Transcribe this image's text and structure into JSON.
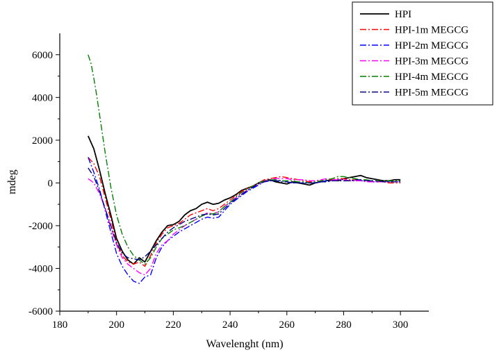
{
  "chart_data": {
    "type": "line",
    "xlabel": "Wavelenght (nm)",
    "ylabel": "mdeg",
    "xlim": [
      180,
      310
    ],
    "ylim": [
      -6000,
      7000
    ],
    "xticks": [
      180,
      200,
      220,
      240,
      260,
      280,
      300
    ],
    "yticks": [
      -6000,
      -4000,
      -2000,
      0,
      2000,
      4000,
      6000
    ],
    "legend_position": "top-right",
    "grid": false,
    "series": [
      {
        "name": "HPI",
        "color": "#000000",
        "dash": "solid",
        "x": [
          190,
          192,
          194,
          196,
          198,
          200,
          202,
          204,
          206,
          208,
          210,
          212,
          214,
          216,
          218,
          220,
          222,
          224,
          226,
          228,
          230,
          232,
          234,
          236,
          238,
          240,
          242,
          244,
          246,
          248,
          250,
          252,
          254,
          256,
          258,
          260,
          262,
          264,
          266,
          268,
          270,
          272,
          274,
          276,
          278,
          280,
          282,
          284,
          286,
          288,
          290,
          292,
          294,
          296,
          298,
          300
        ],
        "y": [
          2200,
          1600,
          600,
          -500,
          -1500,
          -2600,
          -3200,
          -3600,
          -3800,
          -3500,
          -3700,
          -3200,
          -2700,
          -2300,
          -2000,
          -1950,
          -1800,
          -1500,
          -1300,
          -1200,
          -1000,
          -900,
          -1000,
          -950,
          -800,
          -700,
          -550,
          -350,
          -250,
          -150,
          0,
          100,
          150,
          50,
          0,
          -50,
          50,
          0,
          -50,
          -100,
          0,
          50,
          100,
          150,
          100,
          200,
          250,
          300,
          350,
          250,
          200,
          150,
          100,
          100,
          150,
          150
        ]
      },
      {
        "name": "HPI-1m MEGCG",
        "color": "#ff0000",
        "dash": "dashdot",
        "x": [
          190,
          192,
          194,
          196,
          198,
          200,
          202,
          204,
          206,
          208,
          210,
          212,
          214,
          216,
          218,
          220,
          222,
          224,
          226,
          228,
          230,
          232,
          234,
          236,
          238,
          240,
          242,
          244,
          246,
          248,
          250,
          252,
          254,
          256,
          258,
          260,
          262,
          264,
          266,
          268,
          270,
          272,
          274,
          276,
          278,
          280,
          282,
          284,
          286,
          288,
          290,
          292,
          294,
          296,
          298,
          300
        ],
        "y": [
          1200,
          900,
          300,
          -700,
          -1700,
          -2800,
          -3400,
          -3700,
          -3800,
          -3700,
          -3900,
          -3400,
          -2800,
          -2400,
          -2100,
          -2000,
          -1900,
          -1700,
          -1500,
          -1400,
          -1300,
          -1200,
          -1300,
          -1200,
          -1000,
          -800,
          -600,
          -400,
          -250,
          -150,
          0,
          150,
          200,
          250,
          300,
          250,
          200,
          150,
          100,
          50,
          50,
          100,
          150,
          150,
          200,
          200,
          150,
          150,
          100,
          100,
          50,
          50,
          50,
          0,
          0,
          0
        ]
      },
      {
        "name": "HPI-2m MEGCG",
        "color": "#0000ff",
        "dash": "dashdot",
        "x": [
          190,
          192,
          194,
          196,
          198,
          200,
          202,
          204,
          206,
          208,
          210,
          212,
          214,
          216,
          218,
          220,
          222,
          224,
          226,
          228,
          230,
          232,
          234,
          236,
          238,
          240,
          242,
          244,
          246,
          248,
          250,
          252,
          254,
          256,
          258,
          260,
          262,
          264,
          266,
          268,
          270,
          272,
          274,
          276,
          278,
          280,
          282,
          284,
          286,
          288,
          290,
          292,
          294,
          296,
          298,
          300
        ],
        "y": [
          1200,
          500,
          -300,
          -1300,
          -2300,
          -3300,
          -3900,
          -4300,
          -4600,
          -4700,
          -4400,
          -4300,
          -3500,
          -3000,
          -2700,
          -2500,
          -2300,
          -2150,
          -2000,
          -1850,
          -1700,
          -1600,
          -1650,
          -1600,
          -1300,
          -1000,
          -800,
          -600,
          -400,
          -250,
          -100,
          50,
          100,
          100,
          100,
          50,
          0,
          0,
          0,
          0,
          0,
          50,
          100,
          100,
          150,
          150,
          100,
          100,
          100,
          100,
          50,
          50,
          50,
          50,
          50,
          50
        ]
      },
      {
        "name": "HPI-3m MEGCG",
        "color": "#ff00ff",
        "dash": "dashdot",
        "x": [
          190,
          192,
          194,
          196,
          198,
          200,
          202,
          204,
          206,
          208,
          210,
          212,
          214,
          216,
          218,
          220,
          222,
          224,
          226,
          228,
          230,
          232,
          234,
          236,
          238,
          240,
          242,
          244,
          246,
          248,
          250,
          252,
          254,
          256,
          258,
          260,
          262,
          264,
          266,
          268,
          270,
          272,
          274,
          276,
          278,
          280,
          282,
          284,
          286,
          288,
          290,
          292,
          294,
          296,
          298,
          300
        ],
        "y": [
          200,
          0,
          -500,
          -1200,
          -2100,
          -2900,
          -3500,
          -3800,
          -4000,
          -4200,
          -4300,
          -4000,
          -3300,
          -2900,
          -2700,
          -2400,
          -2200,
          -2000,
          -1850,
          -1700,
          -1550,
          -1400,
          -1450,
          -1350,
          -1100,
          -900,
          -700,
          -500,
          -350,
          -200,
          -50,
          100,
          150,
          200,
          200,
          200,
          150,
          150,
          150,
          100,
          100,
          150,
          200,
          150,
          150,
          150,
          100,
          100,
          100,
          50,
          50,
          50,
          50,
          50,
          50,
          50
        ]
      },
      {
        "name": "HPI-4m MEGCG",
        "color": "#008000",
        "dash": "dashdot",
        "x": [
          190,
          191,
          192,
          193,
          194,
          196,
          198,
          200,
          202,
          204,
          206,
          208,
          210,
          212,
          214,
          216,
          218,
          220,
          222,
          224,
          226,
          228,
          230,
          232,
          234,
          236,
          238,
          240,
          242,
          244,
          246,
          248,
          250,
          252,
          254,
          256,
          258,
          260,
          262,
          264,
          266,
          268,
          270,
          272,
          274,
          276,
          278,
          280,
          282,
          284,
          286,
          288,
          290,
          292,
          294,
          296,
          298,
          300
        ],
        "y": [
          6000,
          5600,
          4900,
          4100,
          3200,
          1400,
          -200,
          -1500,
          -2400,
          -3000,
          -3400,
          -3600,
          -3800,
          -3500,
          -3000,
          -2600,
          -2400,
          -2200,
          -2100,
          -2000,
          -1850,
          -1700,
          -1550,
          -1450,
          -1450,
          -1350,
          -1100,
          -900,
          -650,
          -450,
          -300,
          -150,
          0,
          100,
          150,
          150,
          100,
          100,
          100,
          50,
          50,
          0,
          50,
          100,
          150,
          200,
          300,
          300,
          250,
          200,
          150,
          150,
          100,
          100,
          100,
          100,
          100,
          100
        ]
      },
      {
        "name": "HPI-5m MEGCG",
        "color": "#000080",
        "dash": "dashdot",
        "x": [
          190,
          192,
          194,
          196,
          198,
          200,
          202,
          204,
          206,
          208,
          210,
          212,
          214,
          216,
          218,
          220,
          222,
          224,
          226,
          228,
          230,
          232,
          234,
          236,
          238,
          240,
          242,
          244,
          246,
          248,
          250,
          252,
          254,
          256,
          258,
          260,
          262,
          264,
          266,
          268,
          270,
          272,
          274,
          276,
          278,
          280,
          282,
          284,
          286,
          288,
          290,
          292,
          294,
          296,
          298,
          300
        ],
        "y": [
          700,
          300,
          -400,
          -1200,
          -2000,
          -2800,
          -3300,
          -3500,
          -3550,
          -3600,
          -3450,
          -3200,
          -2900,
          -2600,
          -2300,
          -2100,
          -1950,
          -1800,
          -1700,
          -1600,
          -1500,
          -1450,
          -1500,
          -1450,
          -1200,
          -950,
          -750,
          -550,
          -350,
          -200,
          -50,
          50,
          100,
          100,
          50,
          50,
          0,
          0,
          0,
          0,
          0,
          50,
          50,
          100,
          100,
          100,
          100,
          150,
          150,
          100,
          100,
          100,
          50,
          50,
          50,
          50
        ]
      }
    ]
  }
}
